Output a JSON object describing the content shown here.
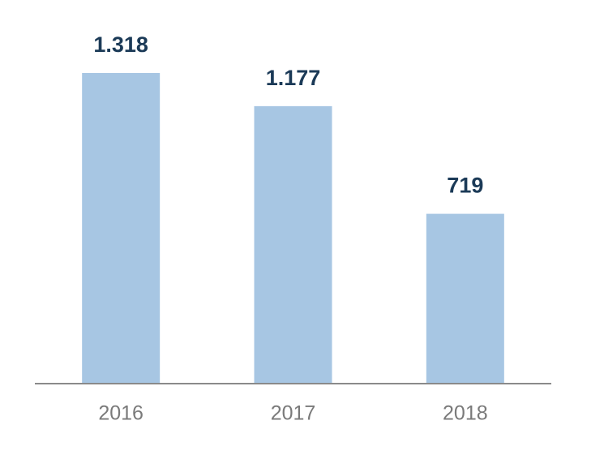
{
  "chart_data": {
    "type": "bar",
    "categories": [
      "2016",
      "2017",
      "2018"
    ],
    "values": [
      1318,
      1177,
      719
    ],
    "value_labels": [
      "1.318",
      "1.177",
      "719"
    ],
    "color": "#a7c6e3"
  }
}
